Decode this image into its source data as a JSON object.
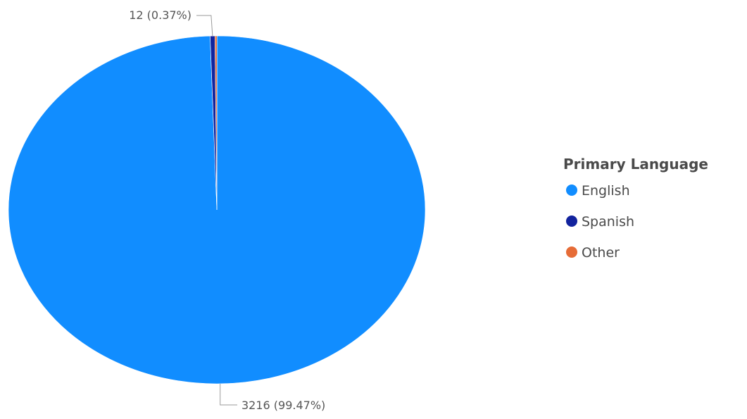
{
  "chart_data": {
    "type": "pie",
    "title": "",
    "legend": {
      "title": "Primary Language",
      "position": "right"
    },
    "series": [
      {
        "name": "English",
        "value": 3216,
        "percent": "99.47%",
        "color": "#118DFF",
        "label": "3216 (99.47%)"
      },
      {
        "name": "Spanish",
        "value": 12,
        "percent": "0.37%",
        "color": "#12239E",
        "label": "12 (0.37%)"
      },
      {
        "name": "Other",
        "value": 5,
        "percent": "0.15%",
        "color": "#E66C37",
        "label": ""
      }
    ]
  },
  "colors": {
    "leader_line": "#9a9a9a",
    "slice_border": "#ffffff"
  }
}
